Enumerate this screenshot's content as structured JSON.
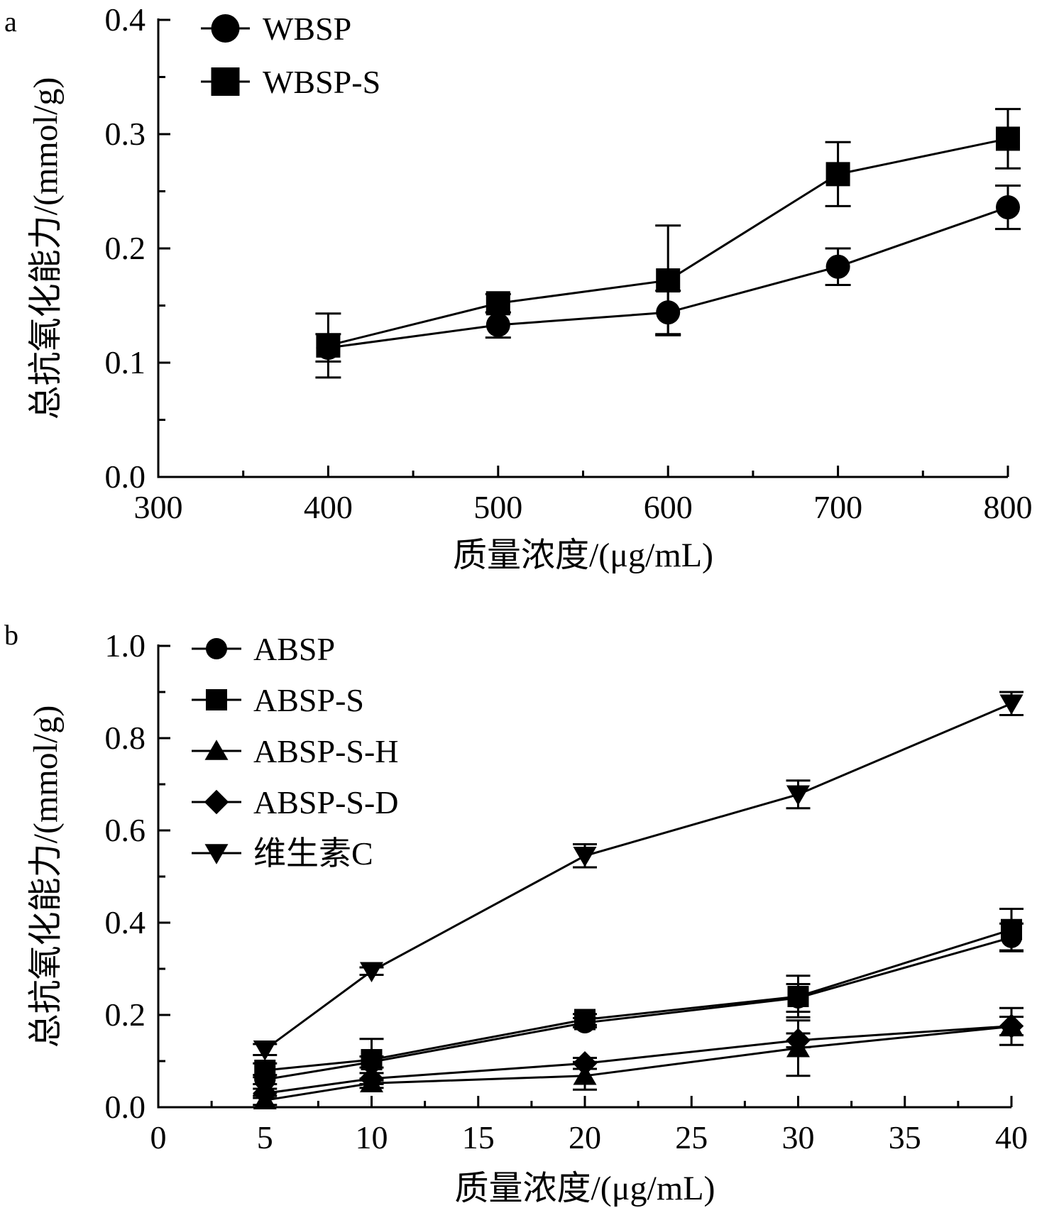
{
  "chart_data": [
    {
      "panel_label": "a",
      "type": "line",
      "xlabel": "质量浓度/(μg/mL)",
      "ylabel": "总抗氧化能力/(mmol/g)",
      "xlim": [
        300,
        800
      ],
      "ylim": [
        0.0,
        0.4
      ],
      "x_ticks": [
        300,
        400,
        500,
        600,
        700,
        800
      ],
      "y_ticks": [
        0.0,
        0.1,
        0.2,
        0.3,
        0.4
      ],
      "x_tick_labels": [
        "300",
        "400",
        "500",
        "600",
        "700",
        "800"
      ],
      "y_tick_labels": [
        "0.0",
        "0.1",
        "0.2",
        "0.3",
        "0.4"
      ],
      "legend_position": "top-left",
      "grid": false,
      "x": [
        400,
        500,
        600,
        700,
        800
      ],
      "series": [
        {
          "name": "WBSP",
          "marker": "circle",
          "values": [
            0.113,
            0.133,
            0.144,
            0.184,
            0.236
          ],
          "errors": [
            0.012,
            0.011,
            0.019,
            0.016,
            0.019
          ]
        },
        {
          "name": "WBSP-S",
          "marker": "square",
          "values": [
            0.115,
            0.152,
            0.172,
            0.265,
            0.296
          ],
          "errors": [
            0.028,
            0.008,
            0.048,
            0.028,
            0.026
          ]
        }
      ]
    },
    {
      "panel_label": "b",
      "type": "line",
      "xlabel": "质量浓度/(μg/mL)",
      "ylabel": "总抗氧化能力/(mmol/g)",
      "xlim": [
        0,
        40
      ],
      "ylim": [
        0.0,
        1.0
      ],
      "x_ticks": [
        0,
        5,
        10,
        15,
        20,
        25,
        30,
        35,
        40
      ],
      "y_ticks": [
        0.0,
        0.2,
        0.4,
        0.6,
        0.8,
        1.0
      ],
      "x_tick_labels": [
        "0",
        "5",
        "10",
        "15",
        "20",
        "25",
        "30",
        "35",
        "40"
      ],
      "y_tick_labels": [
        "0.0",
        "0.2",
        "0.4",
        "0.6",
        "0.8",
        "1.0"
      ],
      "legend_position": "top-left",
      "grid": false,
      "x": [
        5,
        10,
        20,
        30,
        40
      ],
      "series": [
        {
          "name": "ABSP",
          "marker": "circle",
          "values": [
            0.06,
            0.098,
            0.183,
            0.237,
            0.368
          ],
          "errors": [
            0.01,
            0.012,
            0.01,
            0.03,
            0.03
          ]
        },
        {
          "name": "ABSP-S",
          "marker": "square",
          "values": [
            0.08,
            0.103,
            0.19,
            0.24,
            0.385
          ],
          "errors": [
            0.015,
            0.045,
            0.012,
            0.045,
            0.045
          ]
        },
        {
          "name": "ABSP-S-H",
          "marker": "triangle-up",
          "values": [
            0.015,
            0.052,
            0.068,
            0.128,
            0.175
          ],
          "errors": [
            0.01,
            0.01,
            0.03,
            0.06,
            0.04
          ]
        },
        {
          "name": "ABSP-S-D",
          "marker": "diamond",
          "values": [
            0.03,
            0.062,
            0.095,
            0.145,
            0.176
          ],
          "errors": [
            0.01,
            0.012,
            0.012,
            0.015,
            0.02
          ]
        },
        {
          "name": "维生素C",
          "marker": "triangle-down",
          "values": [
            0.125,
            0.295,
            0.545,
            0.678,
            0.875
          ],
          "errors": [
            0.012,
            0.008,
            0.025,
            0.03,
            0.025
          ]
        }
      ]
    }
  ]
}
